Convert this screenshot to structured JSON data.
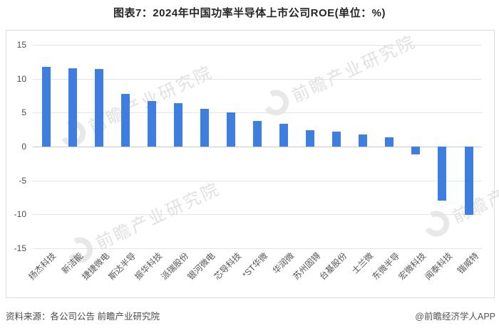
{
  "title": "图表7：2024年中国功率半导体上市公司ROE(单位：%)",
  "footer": {
    "source": "资料来源：各公司公告 前瞻产业研究院",
    "credit": "@前瞻经济学人APP"
  },
  "watermark": "前瞻产业研究院",
  "colors": {
    "bar": "#3D7EE0",
    "grid": "#e3e3e3",
    "zero_line": "#c9c9c9",
    "frame_border": "#dcdcdc",
    "axis_text": "#4d4d4d",
    "title_text": "#262626"
  },
  "chart_data": {
    "type": "bar",
    "title": "2024年中国功率半导体上市公司ROE",
    "unit": "%",
    "categories": [
      "扬杰科技",
      "新洁能",
      "捷捷微电",
      "斯达半导",
      "振华科技",
      "派瑞股份",
      "银河微电",
      "芯导科技",
      "*ST华微",
      "华润微",
      "苏州固锝",
      "台基股份",
      "士兰微",
      "东微半导",
      "宏微科技",
      "闻泰科技",
      "锴威特"
    ],
    "values": [
      11.8,
      11.5,
      11.4,
      7.8,
      6.7,
      6.4,
      5.6,
      5.0,
      3.8,
      3.4,
      2.4,
      2.2,
      1.8,
      1.4,
      -1.2,
      -8.0,
      -10.1
    ],
    "ylim": [
      -15,
      15
    ],
    "yticks": [
      15,
      10,
      5,
      0,
      -5,
      -10,
      -15
    ],
    "grid": true,
    "legend_position": "none",
    "xlabel": "",
    "ylabel": ""
  }
}
